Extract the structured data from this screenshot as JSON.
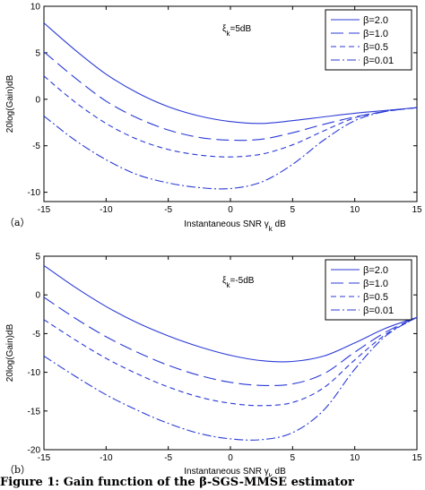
{
  "caption_fragment": "Figure 1: Gain function of the β-SGS-MMSE estimator",
  "chart_data": [
    {
      "type": "line",
      "panel_label": "（a）",
      "annotation": "ξ_k=5dB",
      "xlabel": "Instantaneous SNR γ_k dB",
      "ylabel": "20log(Gain)dB",
      "xlim": [
        -15,
        15
      ],
      "ylim": [
        -11,
        10
      ],
      "x_ticks": [
        -15,
        -10,
        -5,
        0,
        5,
        10,
        15
      ],
      "y_ticks": [
        10,
        5,
        0,
        -5,
        -10
      ],
      "legend_position": "top-right",
      "grid": false,
      "series": [
        {
          "name": "β=2.0",
          "style": "solid",
          "x": [
            -15,
            -12.5,
            -10,
            -7.5,
            -5,
            -2.5,
            0,
            2.5,
            5,
            7.5,
            10,
            12.5,
            15
          ],
          "y": [
            8.2,
            5.3,
            2.7,
            0.7,
            -0.8,
            -1.8,
            -2.4,
            -2.6,
            -2.3,
            -1.9,
            -1.5,
            -1.2,
            -0.9
          ]
        },
        {
          "name": "β=1.0",
          "style": "longdash",
          "x": [
            -15,
            -12.5,
            -10,
            -7.5,
            -5,
            -2.5,
            0,
            2.5,
            5,
            7.5,
            10,
            12.5,
            15
          ],
          "y": [
            5.1,
            2.3,
            -0.2,
            -2.0,
            -3.3,
            -4.1,
            -4.4,
            -4.3,
            -3.6,
            -2.7,
            -1.9,
            -1.3,
            -0.9
          ]
        },
        {
          "name": "β=0.5",
          "style": "shortdash",
          "x": [
            -15,
            -12.5,
            -10,
            -7.5,
            -5,
            -2.5,
            0,
            2.5,
            5,
            7.5,
            10,
            12.5,
            15
          ],
          "y": [
            2.5,
            -0.3,
            -2.6,
            -4.3,
            -5.4,
            -6.0,
            -6.2,
            -5.9,
            -4.9,
            -3.4,
            -2.0,
            -1.3,
            -0.9
          ]
        },
        {
          "name": "β=0.01",
          "style": "dashdot",
          "x": [
            -15,
            -12.5,
            -10,
            -7.5,
            -5,
            -2.5,
            0,
            2.5,
            5,
            7.5,
            10,
            12.5,
            15
          ],
          "y": [
            -1.8,
            -4.4,
            -6.5,
            -8.1,
            -9.0,
            -9.5,
            -9.6,
            -8.9,
            -7.0,
            -4.4,
            -2.3,
            -1.3,
            -0.9
          ]
        }
      ]
    },
    {
      "type": "line",
      "panel_label": "（b）",
      "annotation": "ξ_k=-5dB",
      "xlabel": "Instantaneous SNR γ_k dB",
      "ylabel": "20log(Gain)dB",
      "xlim": [
        -15,
        15
      ],
      "ylim": [
        -20,
        5
      ],
      "x_ticks": [
        -15,
        -10,
        -5,
        0,
        5,
        10,
        15
      ],
      "y_ticks": [
        5,
        0,
        -5,
        -10,
        -15,
        -20
      ],
      "legend_position": "top-right",
      "grid": false,
      "series": [
        {
          "name": "β=2.0",
          "style": "solid",
          "x": [
            -15,
            -12.5,
            -10,
            -7.5,
            -5,
            -2.5,
            0,
            2.5,
            5,
            7.5,
            10,
            12.5,
            15
          ],
          "y": [
            3.8,
            1.0,
            -1.5,
            -3.6,
            -5.3,
            -6.7,
            -7.8,
            -8.5,
            -8.6,
            -7.9,
            -6.2,
            -4.3,
            -2.9
          ]
        },
        {
          "name": "β=1.0",
          "style": "longdash",
          "x": [
            -15,
            -12.5,
            -10,
            -7.5,
            -5,
            -2.5,
            0,
            2.5,
            5,
            7.5,
            10,
            12.5,
            15
          ],
          "y": [
            -0.3,
            -3.0,
            -5.4,
            -7.4,
            -9.1,
            -10.4,
            -11.3,
            -11.7,
            -11.5,
            -10.2,
            -7.4,
            -4.8,
            -2.9
          ]
        },
        {
          "name": "β=0.5",
          "style": "shortdash",
          "x": [
            -15,
            -12.5,
            -10,
            -7.5,
            -5,
            -2.5,
            0,
            2.5,
            5,
            7.5,
            10,
            12.5,
            15
          ],
          "y": [
            -3.2,
            -5.8,
            -8.2,
            -10.2,
            -11.9,
            -13.2,
            -14.0,
            -14.3,
            -13.9,
            -12.0,
            -8.4,
            -5.1,
            -2.9
          ]
        },
        {
          "name": "β=0.01",
          "style": "dashdot",
          "x": [
            -15,
            -12.5,
            -10,
            -7.5,
            -5,
            -2.5,
            0,
            2.5,
            5,
            7.5,
            10,
            12.5,
            15
          ],
          "y": [
            -7.9,
            -10.5,
            -12.9,
            -14.9,
            -16.6,
            -17.9,
            -18.6,
            -18.7,
            -17.8,
            -14.9,
            -9.6,
            -5.3,
            -2.9
          ]
        }
      ]
    }
  ],
  "colors": {
    "line": "#2b3bd6",
    "axis": "#000000",
    "background": "#ffffff"
  }
}
